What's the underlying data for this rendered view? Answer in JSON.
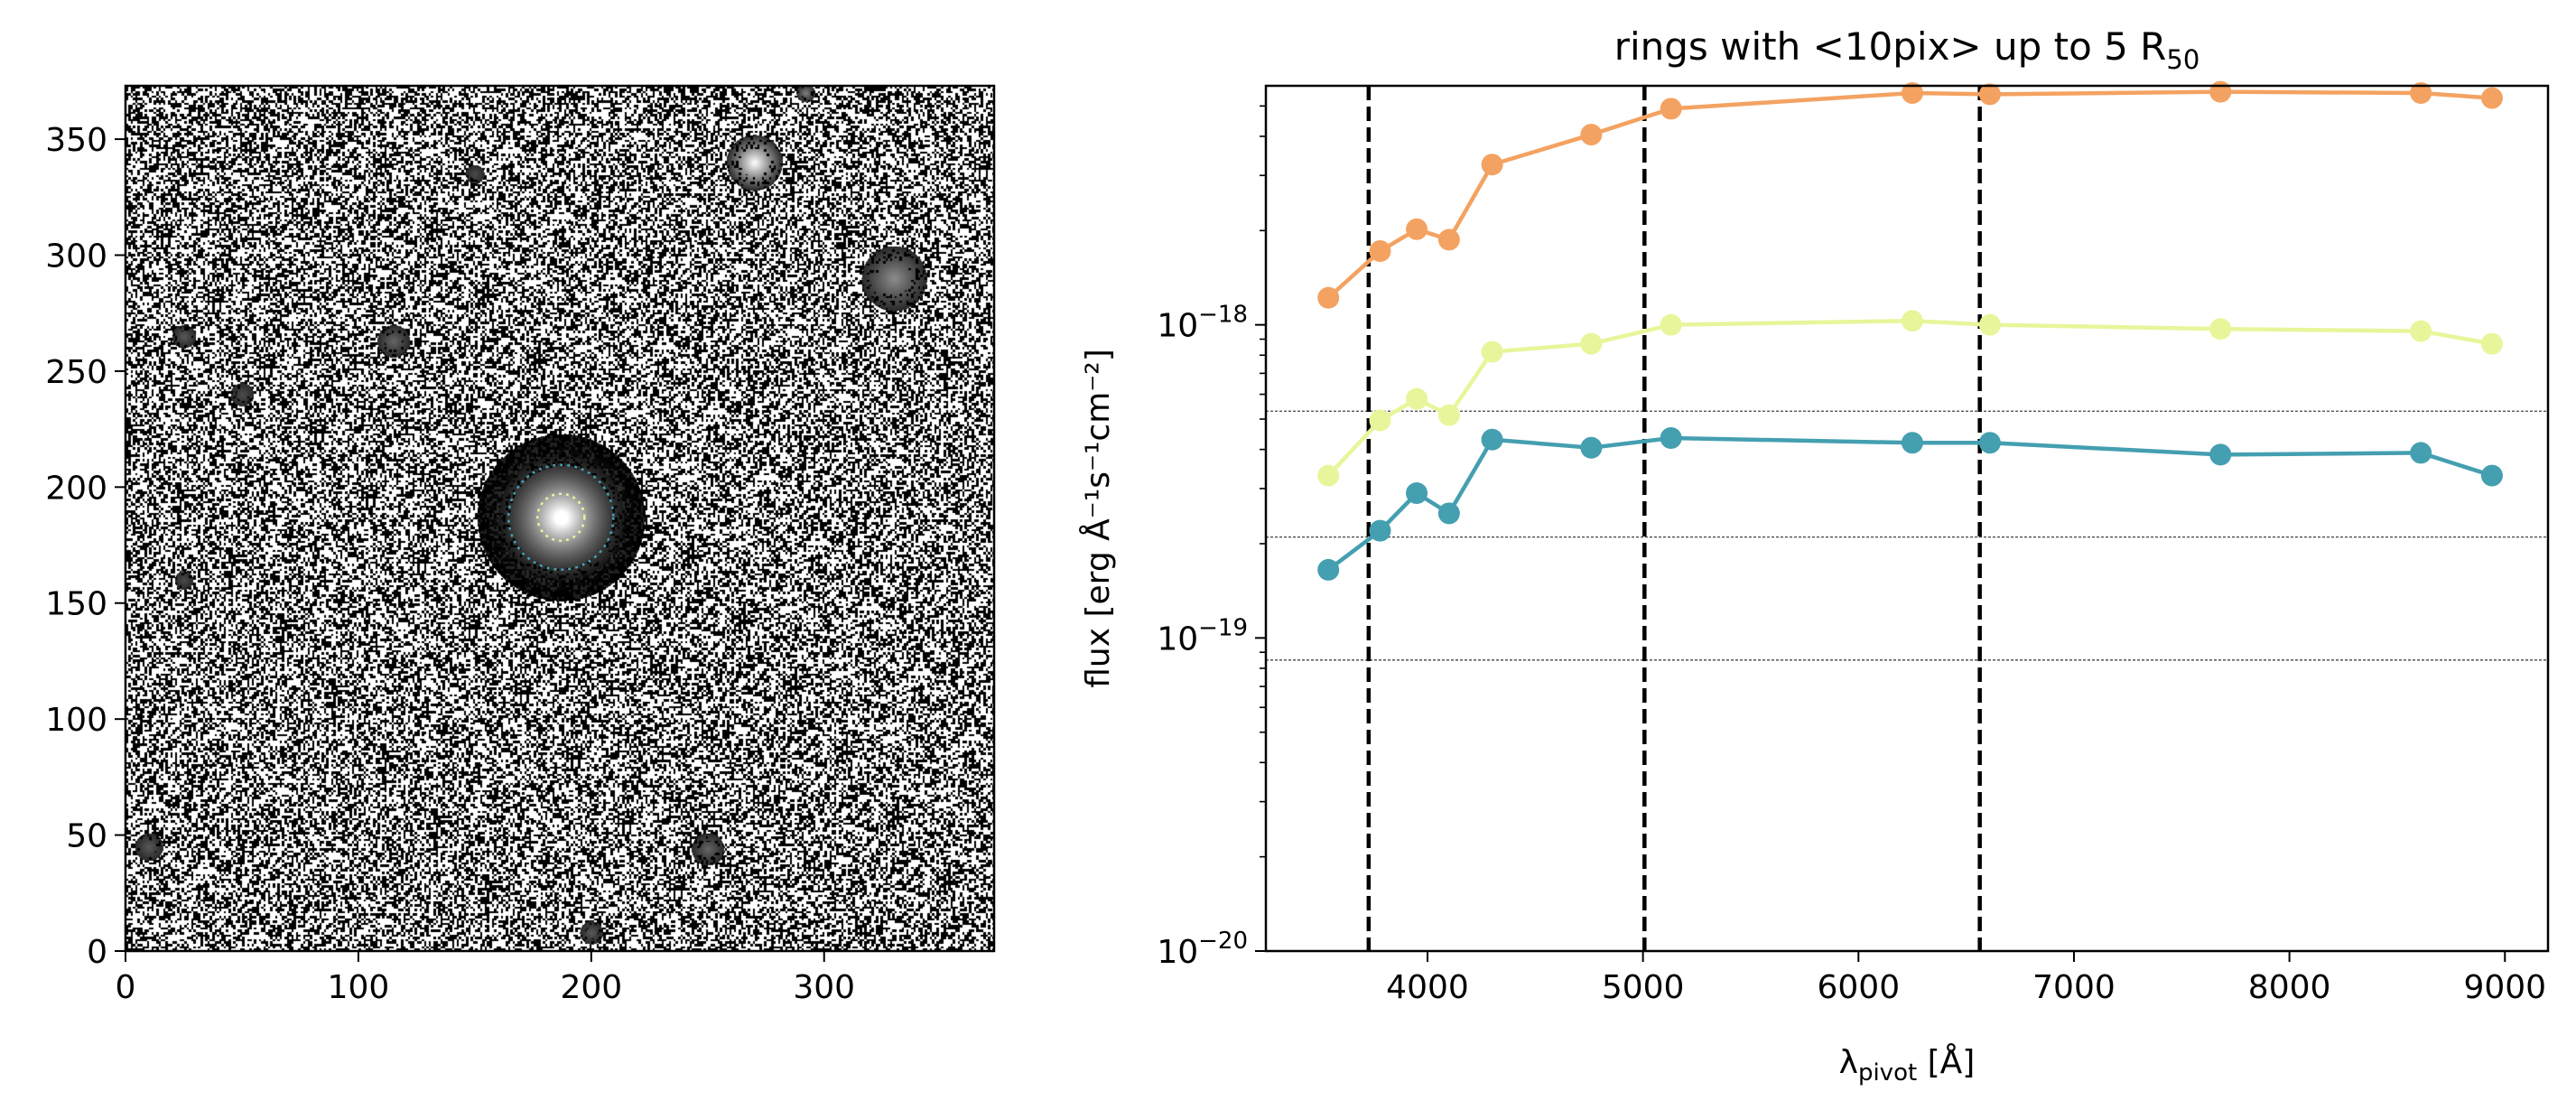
{
  "figure": {
    "left_panel": {
      "type": "image",
      "x_ticks": [
        0,
        100,
        200,
        300
      ],
      "y_ticks": [
        0,
        50,
        100,
        150,
        200,
        250,
        300,
        350
      ],
      "xlim": [
        0,
        373
      ],
      "ylim": [
        0,
        373
      ],
      "galaxy_center": [
        187,
        187
      ],
      "stars": [
        {
          "x": 270,
          "y": 340,
          "r": 12,
          "brightness": 1.0
        },
        {
          "x": 330,
          "y": 290,
          "r": 14,
          "brightness": 0.55
        },
        {
          "x": 115,
          "y": 263,
          "r": 7,
          "brightness": 0.4
        },
        {
          "x": 25,
          "y": 265,
          "r": 5,
          "brightness": 0.35
        },
        {
          "x": 50,
          "y": 240,
          "r": 5,
          "brightness": 0.3
        },
        {
          "x": 250,
          "y": 44,
          "r": 7,
          "brightness": 0.4
        },
        {
          "x": 10,
          "y": 45,
          "r": 6,
          "brightness": 0.35
        },
        {
          "x": 200,
          "y": 8,
          "r": 5,
          "brightness": 0.35
        },
        {
          "x": 292,
          "y": 370,
          "r": 4,
          "brightness": 0.5
        },
        {
          "x": 150,
          "y": 335,
          "r": 4,
          "brightness": 0.3
        },
        {
          "x": 25,
          "y": 160,
          "r": 4,
          "brightness": 0.3
        }
      ]
    }
  },
  "chart_data": {
    "type": "line",
    "title": "rings with <10pix> up to 5 R",
    "title_sub": "50",
    "xlabel_main": "λ",
    "xlabel_sub": "pivot",
    "xlabel_tail": " [Å]",
    "ylabel": "flux [erg Å⁻¹s⁻¹cm⁻²]",
    "yscale": "log",
    "xlim": [
      3250,
      9200
    ],
    "ylim": [
      1e-20,
      5.8e-18
    ],
    "x_ticks": [
      4000,
      5000,
      6000,
      7000,
      8000,
      9000
    ],
    "y_tick_labels": [
      {
        "value": 1e-20,
        "base": "10",
        "exp": "−20"
      },
      {
        "value": 1e-19,
        "base": "10",
        "exp": "−19"
      },
      {
        "value": 1e-18,
        "base": "10",
        "exp": "−18"
      }
    ],
    "x": [
      3540,
      3780,
      3950,
      4100,
      4300,
      4760,
      5130,
      6250,
      6610,
      7680,
      8610,
      8940
    ],
    "series": [
      {
        "color": "#f4a261",
        "values": [
          1.22e-18,
          1.72e-18,
          2.02e-18,
          1.87e-18,
          3.25e-18,
          4.05e-18,
          4.9e-18,
          5.5e-18,
          5.45e-18,
          5.55e-18,
          5.5e-18,
          5.3e-18
        ]
      },
      {
        "color": "#e9f59a",
        "values": [
          3.3e-19,
          4.95e-19,
          5.8e-19,
          5.15e-19,
          8.2e-19,
          8.7e-19,
          1e-18,
          1.03e-18,
          1e-18,
          9.7e-19,
          9.55e-19,
          8.7e-19
        ]
      },
      {
        "color": "#449fb0",
        "values": [
          1.65e-19,
          2.2e-19,
          2.9e-19,
          2.5e-19,
          4.3e-19,
          4.05e-19,
          4.35e-19,
          4.2e-19,
          4.2e-19,
          3.85e-19,
          3.9e-19,
          3.3e-19
        ]
      }
    ],
    "vertical_dashed_lines": [
      3727,
      5007,
      6563
    ],
    "horizontal_dotted_lines": [
      5.3e-19,
      2.1e-19,
      8.5e-20
    ],
    "grid": false,
    "legend": "none"
  }
}
